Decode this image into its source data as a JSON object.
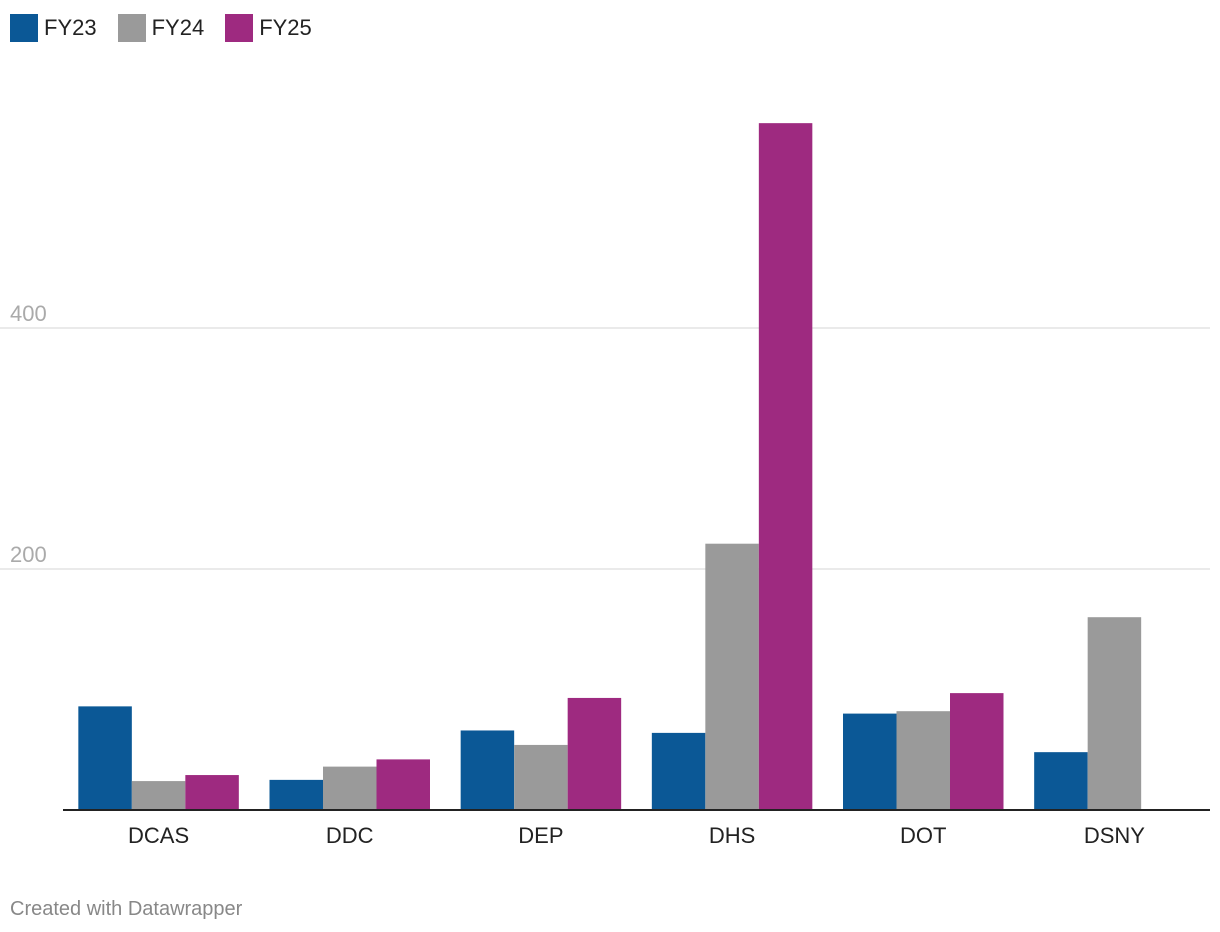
{
  "chart_data": {
    "type": "bar",
    "title": "",
    "xlabel": "",
    "ylabel": "",
    "categories": [
      "DCAS",
      "DDC",
      "DEP",
      "DHS",
      "DOT",
      "DSNY"
    ],
    "series": [
      {
        "name": "FY23",
        "color": "#0b5896",
        "values": [
          86,
          25,
          66,
          64,
          80,
          48
        ]
      },
      {
        "name": "FY24",
        "color": "#9a9a9a",
        "values": [
          24,
          36,
          54,
          221,
          82,
          160
        ]
      },
      {
        "name": "FY25",
        "color": "#9e2a80",
        "values": [
          29,
          42,
          93,
          570,
          97,
          null
        ]
      }
    ],
    "yticks": [
      200,
      400
    ],
    "ylim": [
      0,
      570
    ],
    "grid": true,
    "legend": "top-left"
  },
  "footer": {
    "credit": "Created with Datawrapper"
  }
}
